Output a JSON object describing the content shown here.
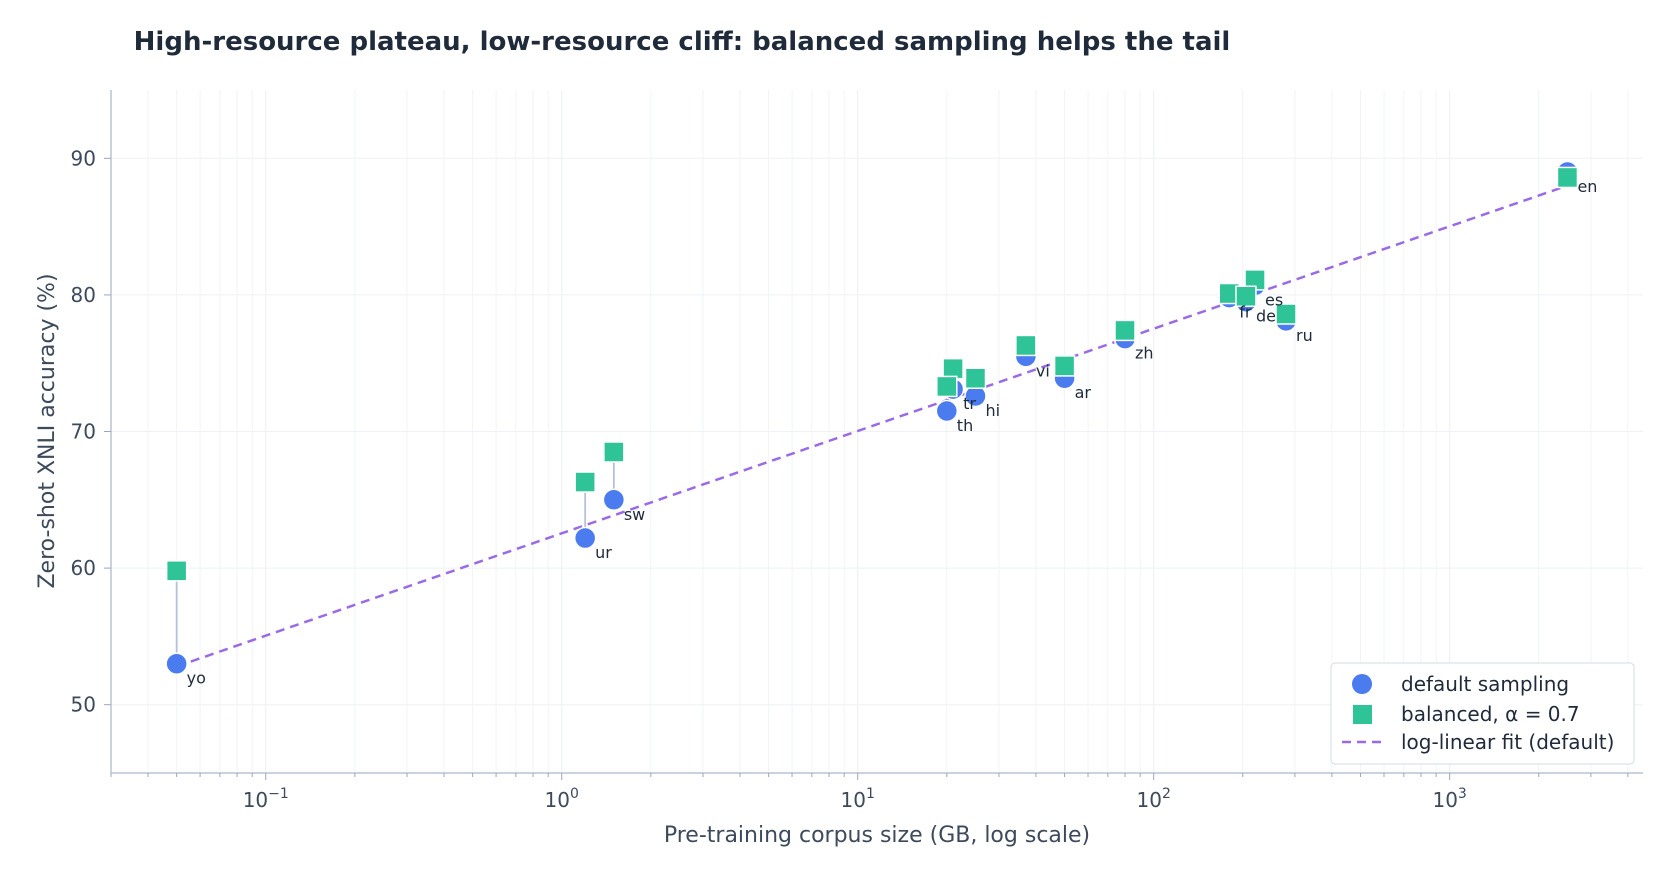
{
  "chart_data": {
    "type": "scatter",
    "title": "High-resource plateau, low-resource cliff: balanced sampling helps the tail",
    "xlabel": "Pre-training corpus size (GB, log scale)",
    "ylabel": "Zero-shot XNLI accuracy (%)",
    "xscale": "log",
    "xlim": [
      0.03,
      4500
    ],
    "ylim": [
      45,
      95
    ],
    "x_ticks": [
      {
        "value": 0.1,
        "base": "10",
        "exp": "−1"
      },
      {
        "value": 1,
        "base": "10",
        "exp": "0"
      },
      {
        "value": 10,
        "base": "10",
        "exp": "1"
      },
      {
        "value": 100,
        "base": "10",
        "exp": "2"
      },
      {
        "value": 1000,
        "base": "10",
        "exp": "3"
      }
    ],
    "y_ticks": [
      "50",
      "60",
      "70",
      "80",
      "90"
    ],
    "grid": true,
    "legend_position": "bottom-right",
    "colors": {
      "default": "#4a7bef",
      "balanced": "#2ec497",
      "fit": "#9b6be6",
      "connector": "#b4c2d8",
      "axis": "#b8c4d6",
      "grid": "#eef1f6"
    },
    "languages": [
      {
        "lang": "en",
        "x": 2500,
        "default": 89.0,
        "balanced": 88.6
      },
      {
        "lang": "es",
        "x": 220,
        "default": 80.7,
        "balanced": 81.1
      },
      {
        "lang": "fr",
        "x": 180,
        "default": 79.8,
        "balanced": 80.1
      },
      {
        "lang": "de",
        "x": 205,
        "default": 79.5,
        "balanced": 79.9
      },
      {
        "lang": "ru",
        "x": 280,
        "default": 78.1,
        "balanced": 78.6
      },
      {
        "lang": "zh",
        "x": 80,
        "default": 76.8,
        "balanced": 77.4
      },
      {
        "lang": "vi",
        "x": 37,
        "default": 75.5,
        "balanced": 76.3
      },
      {
        "lang": "ar",
        "x": 50,
        "default": 73.9,
        "balanced": 74.8
      },
      {
        "lang": "tr",
        "x": 21,
        "default": 73.1,
        "balanced": 74.6
      },
      {
        "lang": "hi",
        "x": 25,
        "default": 72.6,
        "balanced": 73.9
      },
      {
        "lang": "th",
        "x": 20,
        "default": 71.5,
        "balanced": 73.3
      },
      {
        "lang": "sw",
        "x": 1.5,
        "default": 65.0,
        "balanced": 68.5
      },
      {
        "lang": "ur",
        "x": 1.2,
        "default": 62.2,
        "balanced": 66.3
      },
      {
        "lang": "yo",
        "x": 0.05,
        "default": 53.0,
        "balanced": 59.8
      }
    ],
    "fit": {
      "x_start": 0.05,
      "y_start": 52.8,
      "x_end": 2500,
      "y_end": 88.0
    },
    "series": [
      {
        "name": "default sampling",
        "marker": "circle"
      },
      {
        "name": "balanced, α = 0.7",
        "marker": "square"
      },
      {
        "name": "log-linear fit (default)",
        "marker": "dashed-line"
      }
    ]
  }
}
